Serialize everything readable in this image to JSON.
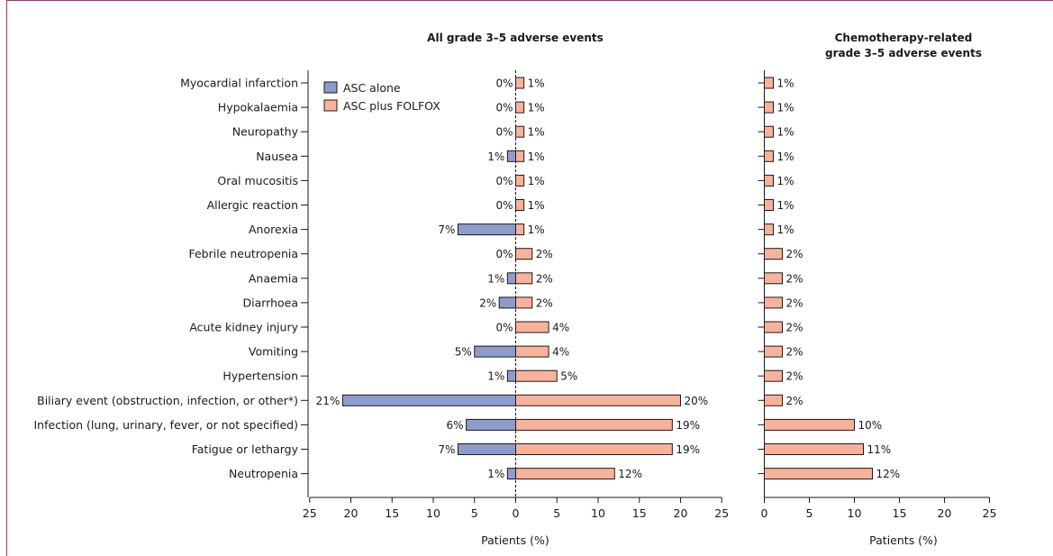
{
  "colors": {
    "frame": "#b03070",
    "asc_alone": "#8d9ccb",
    "asc_plus_folfox": "#f8b29a",
    "bar_stroke": "#1a1a1a"
  },
  "chart_data": [
    {
      "type": "bar",
      "orientation": "horizontal-diverging",
      "title": "All grade 3–5 adverse events",
      "xlabel": "Patients (%)",
      "xlim": [
        -25,
        25
      ],
      "xticks": [
        -25,
        -20,
        -15,
        -10,
        -5,
        0,
        5,
        10,
        15,
        20,
        25
      ],
      "xtick_labels": [
        "25",
        "20",
        "15",
        "10",
        "5",
        "0",
        "5",
        "10",
        "15",
        "20",
        "25"
      ],
      "legend_position": "top-left",
      "categories": [
        "Myocardial infarction",
        "Hypokalaemia",
        "Neuropathy",
        "Nausea",
        "Oral mucositis",
        "Allergic reaction",
        "Anorexia",
        "Febrile neutropenia",
        "Anaemia",
        "Diarrhoea",
        "Acute kidney injury",
        "Vomiting",
        "Hypertension",
        "Biliary event (obstruction, infection, or other*)",
        "Infection (lung, urinary, fever, or not specified)",
        "Fatigue or lethargy",
        "Neutropenia"
      ],
      "series": [
        {
          "name": "ASC alone",
          "values": [
            0,
            0,
            0,
            1,
            0,
            0,
            7,
            0,
            1,
            2,
            0,
            5,
            1,
            21,
            6,
            7,
            1
          ],
          "labels": [
            "0%",
            "0%",
            "0%",
            "1%",
            "0%",
            "0%",
            "7%",
            "0%",
            "1%",
            "2%",
            "0%",
            "5%",
            "1%",
            "21%",
            "6%",
            "7%",
            "1%"
          ]
        },
        {
          "name": "ASC plus FOLFOX",
          "values": [
            1,
            1,
            1,
            1,
            1,
            1,
            1,
            2,
            2,
            2,
            4,
            4,
            5,
            20,
            19,
            19,
            12
          ],
          "labels": [
            "1%",
            "1%",
            "1%",
            "1%",
            "1%",
            "1%",
            "1%",
            "2%",
            "2%",
            "2%",
            "4%",
            "4%",
            "5%",
            "20%",
            "19%",
            "19%",
            "12%"
          ]
        }
      ]
    },
    {
      "type": "bar",
      "orientation": "horizontal",
      "title_lines": [
        "Chemotherapy-related",
        "grade 3–5 adverse events"
      ],
      "xlabel": "Patients (%)",
      "xlim": [
        0,
        25
      ],
      "xticks": [
        0,
        5,
        10,
        15,
        20,
        25
      ],
      "xtick_labels": [
        "0",
        "5",
        "10",
        "15",
        "20",
        "25"
      ],
      "series": [
        {
          "name": "ASC plus FOLFOX",
          "values": [
            1,
            1,
            1,
            1,
            1,
            1,
            1,
            2,
            2,
            2,
            2,
            2,
            2,
            2,
            10,
            11,
            12
          ],
          "labels": [
            "1%",
            "1%",
            "1%",
            "1%",
            "1%",
            "1%",
            "1%",
            "2%",
            "2%",
            "2%",
            "2%",
            "2%",
            "2%",
            "2%",
            "10%",
            "11%",
            "12%"
          ]
        }
      ]
    }
  ]
}
